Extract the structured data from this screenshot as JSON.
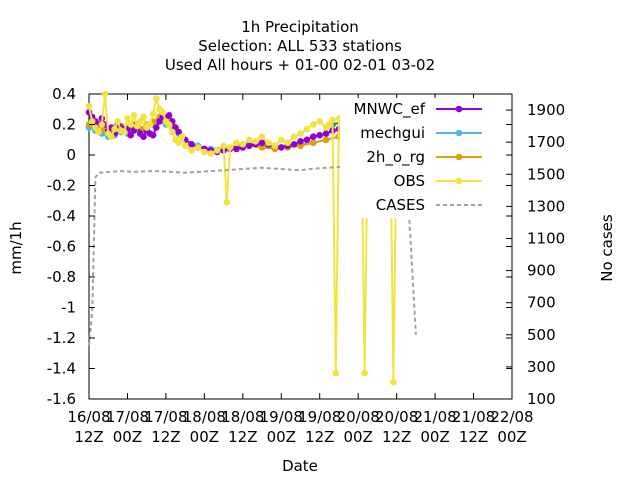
{
  "chart_data": {
    "type": "line",
    "title_lines": [
      "1h Precipitation",
      "Selection: ALL     533 stations",
      "Used  All hours  + 01-00 02-01 03-02"
    ],
    "xlabel": "Date",
    "ylabel": "mm/1h",
    "y2label": "No cases",
    "ylim": [
      -1.6,
      0.4
    ],
    "y2lim": [
      100,
      2000
    ],
    "yticks": [
      "0.4",
      "0.2",
      "0",
      "-0.2",
      "-0.4",
      "-0.6",
      "-0.8",
      "-1",
      "-1.2",
      "-1.4",
      "-1.6"
    ],
    "y2ticks": [
      "1900",
      "1700",
      "1500",
      "1300",
      "1100",
      "900",
      "700",
      "500",
      "300",
      "100"
    ],
    "xticks": [
      [
        "16/08",
        "12Z"
      ],
      [
        "17/08",
        "00Z"
      ],
      [
        "17/08",
        "12Z"
      ],
      [
        "18/08",
        "00Z"
      ],
      [
        "18/08",
        "12Z"
      ],
      [
        "19/08",
        "00Z"
      ],
      [
        "19/08",
        "12Z"
      ],
      [
        "20/08",
        "00Z"
      ],
      [
        "20/08",
        "12Z"
      ],
      [
        "21/08",
        "00Z"
      ],
      [
        "21/08",
        "12Z"
      ],
      [
        "22/08",
        "00Z"
      ]
    ],
    "x_unit": "hours since 16/08 12Z",
    "grid": false,
    "legend_position": "top-right",
    "series": [
      {
        "name": "MNWC_ef",
        "color": "#9400d3",
        "style": "line-points"
      },
      {
        "name": "",
        "color": "#009e73",
        "style": "line-points"
      },
      {
        "name": "",
        "color": "#56b4e9",
        "style": "line-points"
      },
      {
        "name": "",
        "color": "#e69f00",
        "style": "line-points"
      },
      {
        "name": "OBS",
        "color": "#f0e442",
        "style": "line-points"
      },
      {
        "name": "CASES",
        "color": "#a0a0a0",
        "style": "dashed",
        "axis": "y2"
      }
    ],
    "series_points": {
      "MNWC_ef": [
        [
          0,
          0.28
        ],
        [
          1,
          0.25
        ],
        [
          2,
          0.22
        ],
        [
          3,
          0.2
        ],
        [
          4,
          0.24
        ],
        [
          5,
          0.2
        ],
        [
          6,
          0.16
        ],
        [
          7,
          0.18
        ],
        [
          8,
          0.14
        ],
        [
          9,
          0.2
        ],
        [
          10,
          0.18
        ],
        [
          11,
          0.16
        ],
        [
          12,
          0.17
        ],
        [
          13,
          0.13
        ],
        [
          14,
          0.16
        ],
        [
          15,
          0.2
        ],
        [
          16,
          0.14
        ],
        [
          17,
          0.12
        ],
        [
          18,
          0.16
        ],
        [
          19,
          0.14
        ],
        [
          20,
          0.13
        ],
        [
          21,
          0.18
        ],
        [
          22,
          0.22
        ],
        [
          23,
          0.25
        ],
        [
          24,
          0.24
        ],
        [
          25,
          0.26
        ],
        [
          26,
          0.22
        ],
        [
          27,
          0.18
        ],
        [
          28,
          0.15
        ],
        [
          29,
          0.12
        ],
        [
          30,
          0.1
        ],
        [
          32,
          0.07
        ],
        [
          34,
          0.05
        ],
        [
          36,
          0.04
        ],
        [
          38,
          0.03
        ],
        [
          40,
          0.02
        ],
        [
          42,
          0.03
        ],
        [
          44,
          0.04
        ],
        [
          46,
          0.04
        ],
        [
          48,
          0.05
        ],
        [
          50,
          0.06
        ],
        [
          52,
          0.07
        ],
        [
          54,
          0.08
        ],
        [
          56,
          0.07
        ],
        [
          58,
          0.06
        ],
        [
          60,
          0.05
        ],
        [
          62,
          0.06
        ],
        [
          64,
          0.07
        ],
        [
          66,
          0.09
        ],
        [
          68,
          0.1
        ],
        [
          70,
          0.12
        ],
        [
          72,
          0.13
        ],
        [
          74,
          0.14
        ],
        [
          76,
          0.16
        ],
        [
          78,
          0.17
        ],
        [
          80,
          0.18
        ],
        [
          82,
          0.2
        ],
        [
          84,
          0.19
        ],
        [
          86,
          0.18
        ],
        [
          88,
          0.15
        ],
        [
          90,
          0.14
        ],
        [
          92,
          0.13
        ],
        [
          94,
          0.12
        ],
        [
          96,
          0.11
        ],
        [
          98,
          0.12
        ],
        [
          100,
          0.13
        ],
        [
          102,
          0.12
        ]
      ],
      "s2": [
        [
          76,
          0.2
        ],
        [
          80,
          0.22
        ],
        [
          82,
          0.26
        ],
        [
          84,
          0.25
        ],
        [
          86,
          0.22
        ],
        [
          88,
          0.2
        ],
        [
          90,
          0.18
        ],
        [
          92,
          0.17
        ],
        [
          94,
          0.16
        ],
        [
          96,
          0.15
        ],
        [
          98,
          0.18
        ],
        [
          100,
          0.2
        ],
        [
          102,
          0.22
        ]
      ],
      "s3": [
        [
          0,
          0.18
        ],
        [
          2,
          0.16
        ],
        [
          4,
          0.14
        ],
        [
          6,
          0.12
        ],
        [
          8,
          0.13
        ],
        [
          10,
          0.15
        ],
        [
          12,
          0.14
        ],
        [
          14,
          0.17
        ],
        [
          16,
          0.15
        ],
        [
          18,
          0.18
        ],
        [
          20,
          0.2
        ],
        [
          22,
          0.22
        ],
        [
          24,
          0.2
        ],
        [
          26,
          0.18
        ],
        [
          28,
          0.14
        ],
        [
          30,
          0.1
        ],
        [
          34,
          0.06
        ],
        [
          38,
          0.04
        ],
        [
          42,
          0.05
        ],
        [
          46,
          0.06
        ],
        [
          50,
          0.07
        ],
        [
          54,
          0.06
        ],
        [
          58,
          0.05
        ],
        [
          62,
          0.06
        ],
        [
          66,
          0.07
        ],
        [
          70,
          0.08
        ],
        [
          74,
          0.1
        ],
        [
          78,
          0.12
        ],
        [
          82,
          0.14
        ],
        [
          86,
          0.13
        ],
        [
          90,
          0.11
        ],
        [
          94,
          0.1
        ],
        [
          98,
          0.1
        ],
        [
          102,
          0.1
        ]
      ],
      "s4": [
        [
          0,
          0.2
        ],
        [
          2,
          0.18
        ],
        [
          4,
          0.17
        ],
        [
          6,
          0.15
        ],
        [
          8,
          0.16
        ],
        [
          10,
          0.19
        ],
        [
          12,
          0.18
        ],
        [
          14,
          0.2
        ],
        [
          16,
          0.17
        ],
        [
          18,
          0.2
        ],
        [
          20,
          0.22
        ],
        [
          22,
          0.25
        ],
        [
          24,
          0.23
        ],
        [
          26,
          0.2
        ],
        [
          28,
          0.15
        ],
        [
          30,
          0.1
        ],
        [
          34,
          0.05
        ],
        [
          38,
          0.03
        ],
        [
          42,
          0.04
        ],
        [
          46,
          0.05
        ],
        [
          50,
          0.06
        ],
        [
          54,
          0.05
        ],
        [
          58,
          0.04
        ],
        [
          62,
          0.05
        ],
        [
          66,
          0.06
        ],
        [
          70,
          0.08
        ],
        [
          74,
          0.1
        ],
        [
          78,
          0.12
        ],
        [
          82,
          0.16
        ],
        [
          86,
          0.15
        ],
        [
          90,
          0.13
        ],
        [
          94,
          0.12
        ],
        [
          98,
          0.12
        ],
        [
          102,
          0.13
        ]
      ],
      "OBS": [
        [
          0,
          0.32
        ],
        [
          1,
          0.22
        ],
        [
          2,
          0.18
        ],
        [
          3,
          0.15
        ],
        [
          4,
          0.2
        ],
        [
          5,
          0.4
        ],
        [
          6,
          0.14
        ],
        [
          7,
          0.12
        ],
        [
          8,
          0.17
        ],
        [
          9,
          0.22
        ],
        [
          10,
          0.16
        ],
        [
          11,
          0.15
        ],
        [
          12,
          0.24
        ],
        [
          13,
          0.2
        ],
        [
          14,
          0.26
        ],
        [
          15,
          0.19
        ],
        [
          16,
          0.22
        ],
        [
          17,
          0.25
        ],
        [
          18,
          0.18
        ],
        [
          19,
          0.2
        ],
        [
          20,
          0.27
        ],
        [
          21,
          0.37
        ],
        [
          22,
          0.3
        ],
        [
          23,
          0.28
        ],
        [
          24,
          0.22
        ],
        [
          25,
          0.2
        ],
        [
          26,
          0.15
        ],
        [
          27,
          0.1
        ],
        [
          28,
          0.08
        ],
        [
          29,
          0.12
        ],
        [
          30,
          0.06
        ],
        [
          32,
          0.03
        ],
        [
          34,
          0.05
        ],
        [
          36,
          0.02
        ],
        [
          38,
          0.01
        ],
        [
          40,
          0.03
        ],
        [
          42,
          0.06
        ],
        [
          43,
          -0.31
        ],
        [
          44,
          0.05
        ],
        [
          46,
          0.08
        ],
        [
          48,
          0.07
        ],
        [
          50,
          0.1
        ],
        [
          52,
          0.09
        ],
        [
          54,
          0.12
        ],
        [
          56,
          0.08
        ],
        [
          58,
          0.06
        ],
        [
          60,
          0.1
        ],
        [
          62,
          0.08
        ],
        [
          64,
          0.12
        ],
        [
          66,
          0.14
        ],
        [
          68,
          0.17
        ],
        [
          70,
          0.2
        ],
        [
          72,
          0.22
        ],
        [
          74,
          0.18
        ],
        [
          75,
          0.2
        ],
        [
          76,
          0.23
        ],
        [
          77,
          -1.43
        ],
        [
          78,
          0.24
        ],
        [
          80,
          0.25
        ],
        [
          82,
          0.22
        ],
        [
          84,
          0.19
        ],
        [
          85,
          0.17
        ],
        [
          86,
          -1.43
        ],
        [
          87,
          0.2
        ],
        [
          88,
          0.16
        ],
        [
          90,
          0.18
        ],
        [
          92,
          0.17
        ],
        [
          93,
          0.34
        ],
        [
          94,
          0.2
        ],
        [
          95,
          -1.49
        ],
        [
          96,
          0.14
        ],
        [
          98,
          0.2
        ],
        [
          100,
          0.18
        ],
        [
          102,
          0.15
        ]
      ],
      "CASES": [
        [
          0,
          430
        ],
        [
          1,
          640
        ],
        [
          2,
          1480
        ],
        [
          3,
          1510
        ],
        [
          6,
          1515
        ],
        [
          10,
          1520
        ],
        [
          14,
          1515
        ],
        [
          18,
          1520
        ],
        [
          22,
          1520
        ],
        [
          26,
          1515
        ],
        [
          30,
          1510
        ],
        [
          34,
          1515
        ],
        [
          38,
          1520
        ],
        [
          42,
          1525
        ],
        [
          46,
          1530
        ],
        [
          50,
          1535
        ],
        [
          54,
          1540
        ],
        [
          58,
          1535
        ],
        [
          62,
          1530
        ],
        [
          66,
          1525
        ],
        [
          70,
          1535
        ],
        [
          74,
          1540
        ],
        [
          78,
          1545
        ],
        [
          82,
          1540
        ],
        [
          86,
          1545
        ],
        [
          90,
          1540
        ],
        [
          94,
          1545
        ],
        [
          98,
          1540
        ],
        [
          100,
          1200
        ],
        [
          102,
          500
        ]
      ]
    },
    "legend_entries": [
      {
        "label": "MNWC_ef",
        "color": "#9400d3"
      },
      {
        "label": "mechgui",
        "color": "#56b4e9"
      },
      {
        "label": "2h_o_rg",
        "color": "#e69f00"
      },
      {
        "label": "OBS",
        "color": "#f0e442"
      },
      {
        "label": "CASES",
        "color": "#a0a0a0"
      }
    ]
  }
}
